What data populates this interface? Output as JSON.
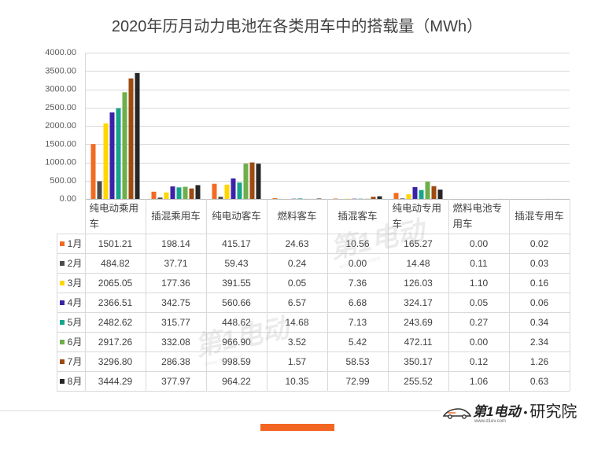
{
  "chart_data": {
    "type": "bar",
    "title": "2020年历月动力电池在各类用车中的搭载量（MWh）",
    "xlabel": "",
    "ylabel": "",
    "categories": [
      "纯电动乘用车",
      "插混乘用车",
      "纯电动客车",
      "燃料客车",
      "插混客车",
      "纯电动专用车",
      "燃料电池专用车",
      "插混专用车"
    ],
    "series": [
      {
        "name": "1月",
        "color": "#F26B21",
        "values": [
          1501.21,
          198.14,
          415.17,
          24.63,
          10.56,
          165.27,
          0.0,
          0.02
        ]
      },
      {
        "name": "2月",
        "color": "#4B4B4B",
        "values": [
          484.82,
          37.71,
          59.43,
          0.24,
          0.0,
          14.48,
          0.11,
          0.03
        ]
      },
      {
        "name": "3月",
        "color": "#FFD600",
        "values": [
          2065.05,
          177.36,
          391.55,
          0.05,
          7.36,
          126.03,
          1.1,
          0.16
        ]
      },
      {
        "name": "4月",
        "color": "#3B22A8",
        "values": [
          2366.51,
          342.75,
          560.66,
          6.57,
          6.68,
          324.17,
          0.05,
          0.06
        ]
      },
      {
        "name": "5月",
        "color": "#16A58B",
        "values": [
          2482.62,
          315.77,
          448.62,
          14.68,
          7.13,
          243.69,
          0.27,
          0.34
        ]
      },
      {
        "name": "6月",
        "color": "#6DAF4A",
        "values": [
          2917.26,
          332.08,
          966.9,
          3.52,
          5.42,
          472.11,
          0.0,
          2.34
        ]
      },
      {
        "name": "7月",
        "color": "#9E4A10",
        "values": [
          3296.8,
          286.38,
          998.59,
          1.57,
          58.53,
          350.17,
          0.12,
          1.26
        ]
      },
      {
        "name": "8月",
        "color": "#262626",
        "values": [
          3444.29,
          377.97,
          964.22,
          10.35,
          72.99,
          255.52,
          1.06,
          0.63
        ]
      }
    ],
    "ylim": [
      0,
      4000
    ],
    "yticks": [
      0,
      500,
      1000,
      1500,
      2000,
      2500,
      3000,
      3500,
      4000
    ],
    "grid": true,
    "legend": "data-table"
  },
  "brand": {
    "name": "第1电动",
    "site": "www.d1ev.com",
    "separator": "•",
    "division": "研究院",
    "accent_color": "#F26522"
  }
}
